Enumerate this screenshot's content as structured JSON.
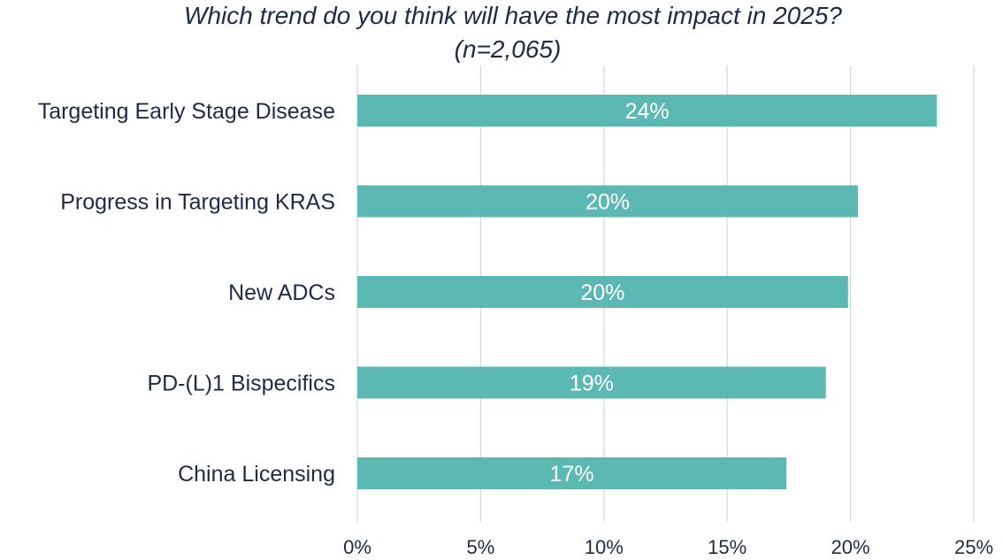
{
  "chart_data": {
    "type": "bar",
    "orientation": "horizontal",
    "title": "Which trend do you think will have the most impact in 2025?",
    "subtitle": "(n=2,065)",
    "categories": [
      "Targeting Early Stage Disease",
      "Progress in Targeting KRAS",
      "New ADCs",
      "PD-(L)1 Bispecifics",
      "China Licensing"
    ],
    "values": [
      23.5,
      20.3,
      19.9,
      19.0,
      17.4
    ],
    "data_labels": [
      "24%",
      "20%",
      "20%",
      "19%",
      "17%"
    ],
    "xlim": [
      0,
      25
    ],
    "xticks": [
      0,
      5,
      10,
      15,
      20,
      25
    ],
    "xtick_labels": [
      "0%",
      "5%",
      "10%",
      "15%",
      "20%",
      "25%"
    ],
    "xlabel": "",
    "ylabel": "",
    "grid": true,
    "legend": "none",
    "bar_color": "#5cb8b2",
    "label_color": "#ffffff",
    "text_color": "#1f2a44",
    "grid_color": "#d4d7de"
  }
}
